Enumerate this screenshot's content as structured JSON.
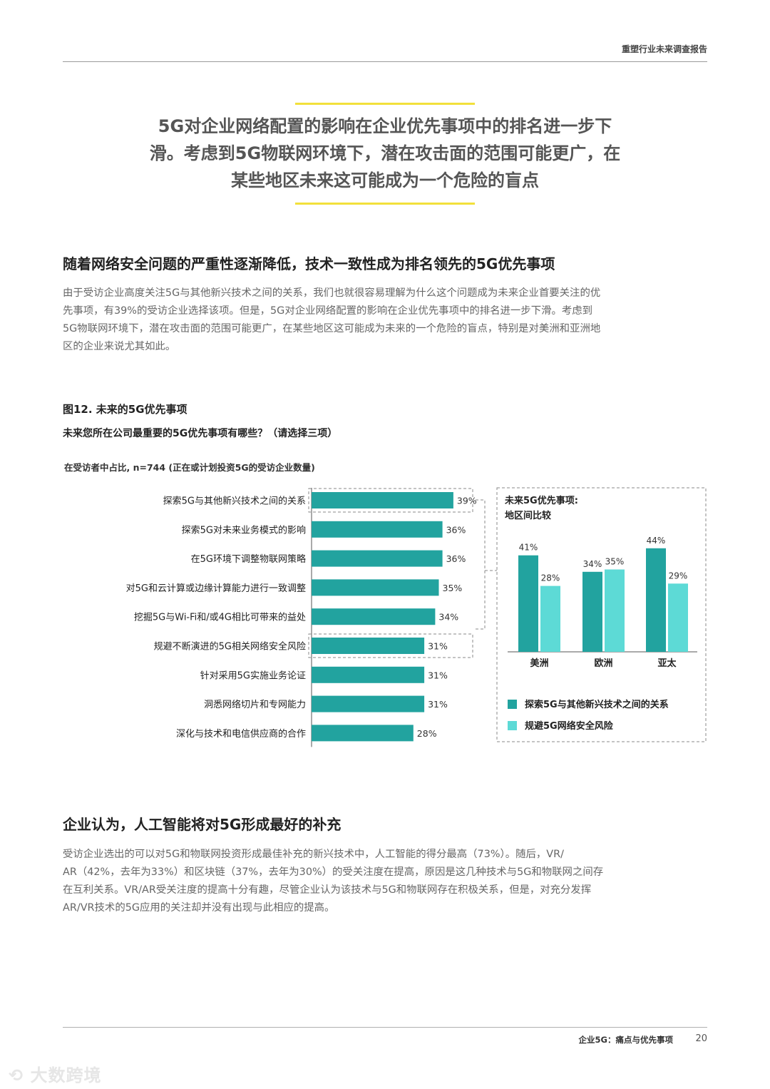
{
  "header": {
    "report_title": "重塑行业未来调查报告"
  },
  "pull_quote": {
    "lines": [
      "5G对企业网络配置的影响在企业优先事项中的排名进一步下",
      "滑。考虑到5G物联网环境下，潜在攻击面的范围可能更广，在",
      "某些地区未来这可能成为一个危险的盲点"
    ]
  },
  "section1": {
    "heading": "随着网络安全问题的严重性逐渐降低，技术一致性成为排名领先的5G优先事项",
    "lines": [
      "由于受访企业高度关注5G与其他新兴技术之间的关系，我们也就很容易理解为什么这个问题成为未来企业首要关注的优",
      "先事项，有39%的受访企业选择该项。但是，5G对企业网络配置的影响在企业优先事项中的排名进一步下滑。考虑到",
      "5G物联网环境下，潜在攻击面的范围可能更广，在某些地区这可能成为未来的一个危险的盲点，特别是对美洲和亚洲地",
      "区的企业来说尤其如此。"
    ]
  },
  "figure": {
    "title": "图12. 未来的5G优先事项",
    "question": "未来您所在公司最重要的5G优先事项有哪些？（请选择三项）",
    "note": "在受访者中占比, n=744 (正在或计划投资5G的受访企业数量)"
  },
  "chart_data": [
    {
      "type": "bar",
      "orientation": "horizontal",
      "categories": [
        "探索5G与其他新兴技术之间的关系",
        "探索5G对未来业务模式的影响",
        "在5G环境下调整物联网策略",
        "对5G和云计算或边缘计算能力进行一致调整",
        "挖掘5G与Wi-Fi和/或4G相比可带来的益处",
        "规避不断演进的5G相关网络安全风险",
        "针对采用5G实施业务论证",
        "洞悉网络切片和专网能力",
        "深化与技术和电信供应商的合作"
      ],
      "values": [
        39,
        36,
        36,
        35,
        34,
        31,
        31,
        31,
        28
      ],
      "value_labels": [
        "39%",
        "36%",
        "36%",
        "35%",
        "34%",
        "31%",
        "31%",
        "31%",
        "28%"
      ],
      "xlim": [
        0,
        100
      ],
      "highlighted": [
        0,
        5
      ],
      "color": "#22a39f"
    },
    {
      "type": "bar",
      "title": "未来5G优先事项:",
      "subtitle": "地区间比较",
      "categories": [
        "美洲",
        "欧洲",
        "亚太"
      ],
      "series": [
        {
          "name": "探索5G与其他新兴技术之间的关系",
          "values": [
            41,
            34,
            44
          ],
          "labels": [
            "41%",
            "34%",
            "44%"
          ],
          "color": "#22a39f"
        },
        {
          "name": "规避5G网络安全风险",
          "values": [
            28,
            35,
            29
          ],
          "labels": [
            "28%",
            "35%",
            "29%"
          ],
          "color": "#5ddad6"
        }
      ],
      "ylim": [
        0,
        50
      ],
      "legend_position": "bottom"
    }
  ],
  "section2": {
    "heading": "企业认为，人工智能将对5G形成最好的补充",
    "lines": [
      "受访企业选出的可以对5G和物联网投资形成最佳补充的新兴技术中，人工智能的得分最高（73%）。随后，VR/",
      "AR（42%，去年为33%）和区块链（37%，去年为30%）的受关注度在提高，原因是这几种技术与5G和物联网之间存",
      "在互利关系。VR/AR受关注度的提高十分有趣，尽管企业认为该技术与5G和物联网存在积极关系，但是，对充分发挥",
      "AR/VR技术的5G应用的关注却并没有出现与此相应的提高。"
    ]
  },
  "footer": {
    "section": "企业5G：痛点与优先事项",
    "page": "20"
  },
  "watermark": "大数跨境"
}
